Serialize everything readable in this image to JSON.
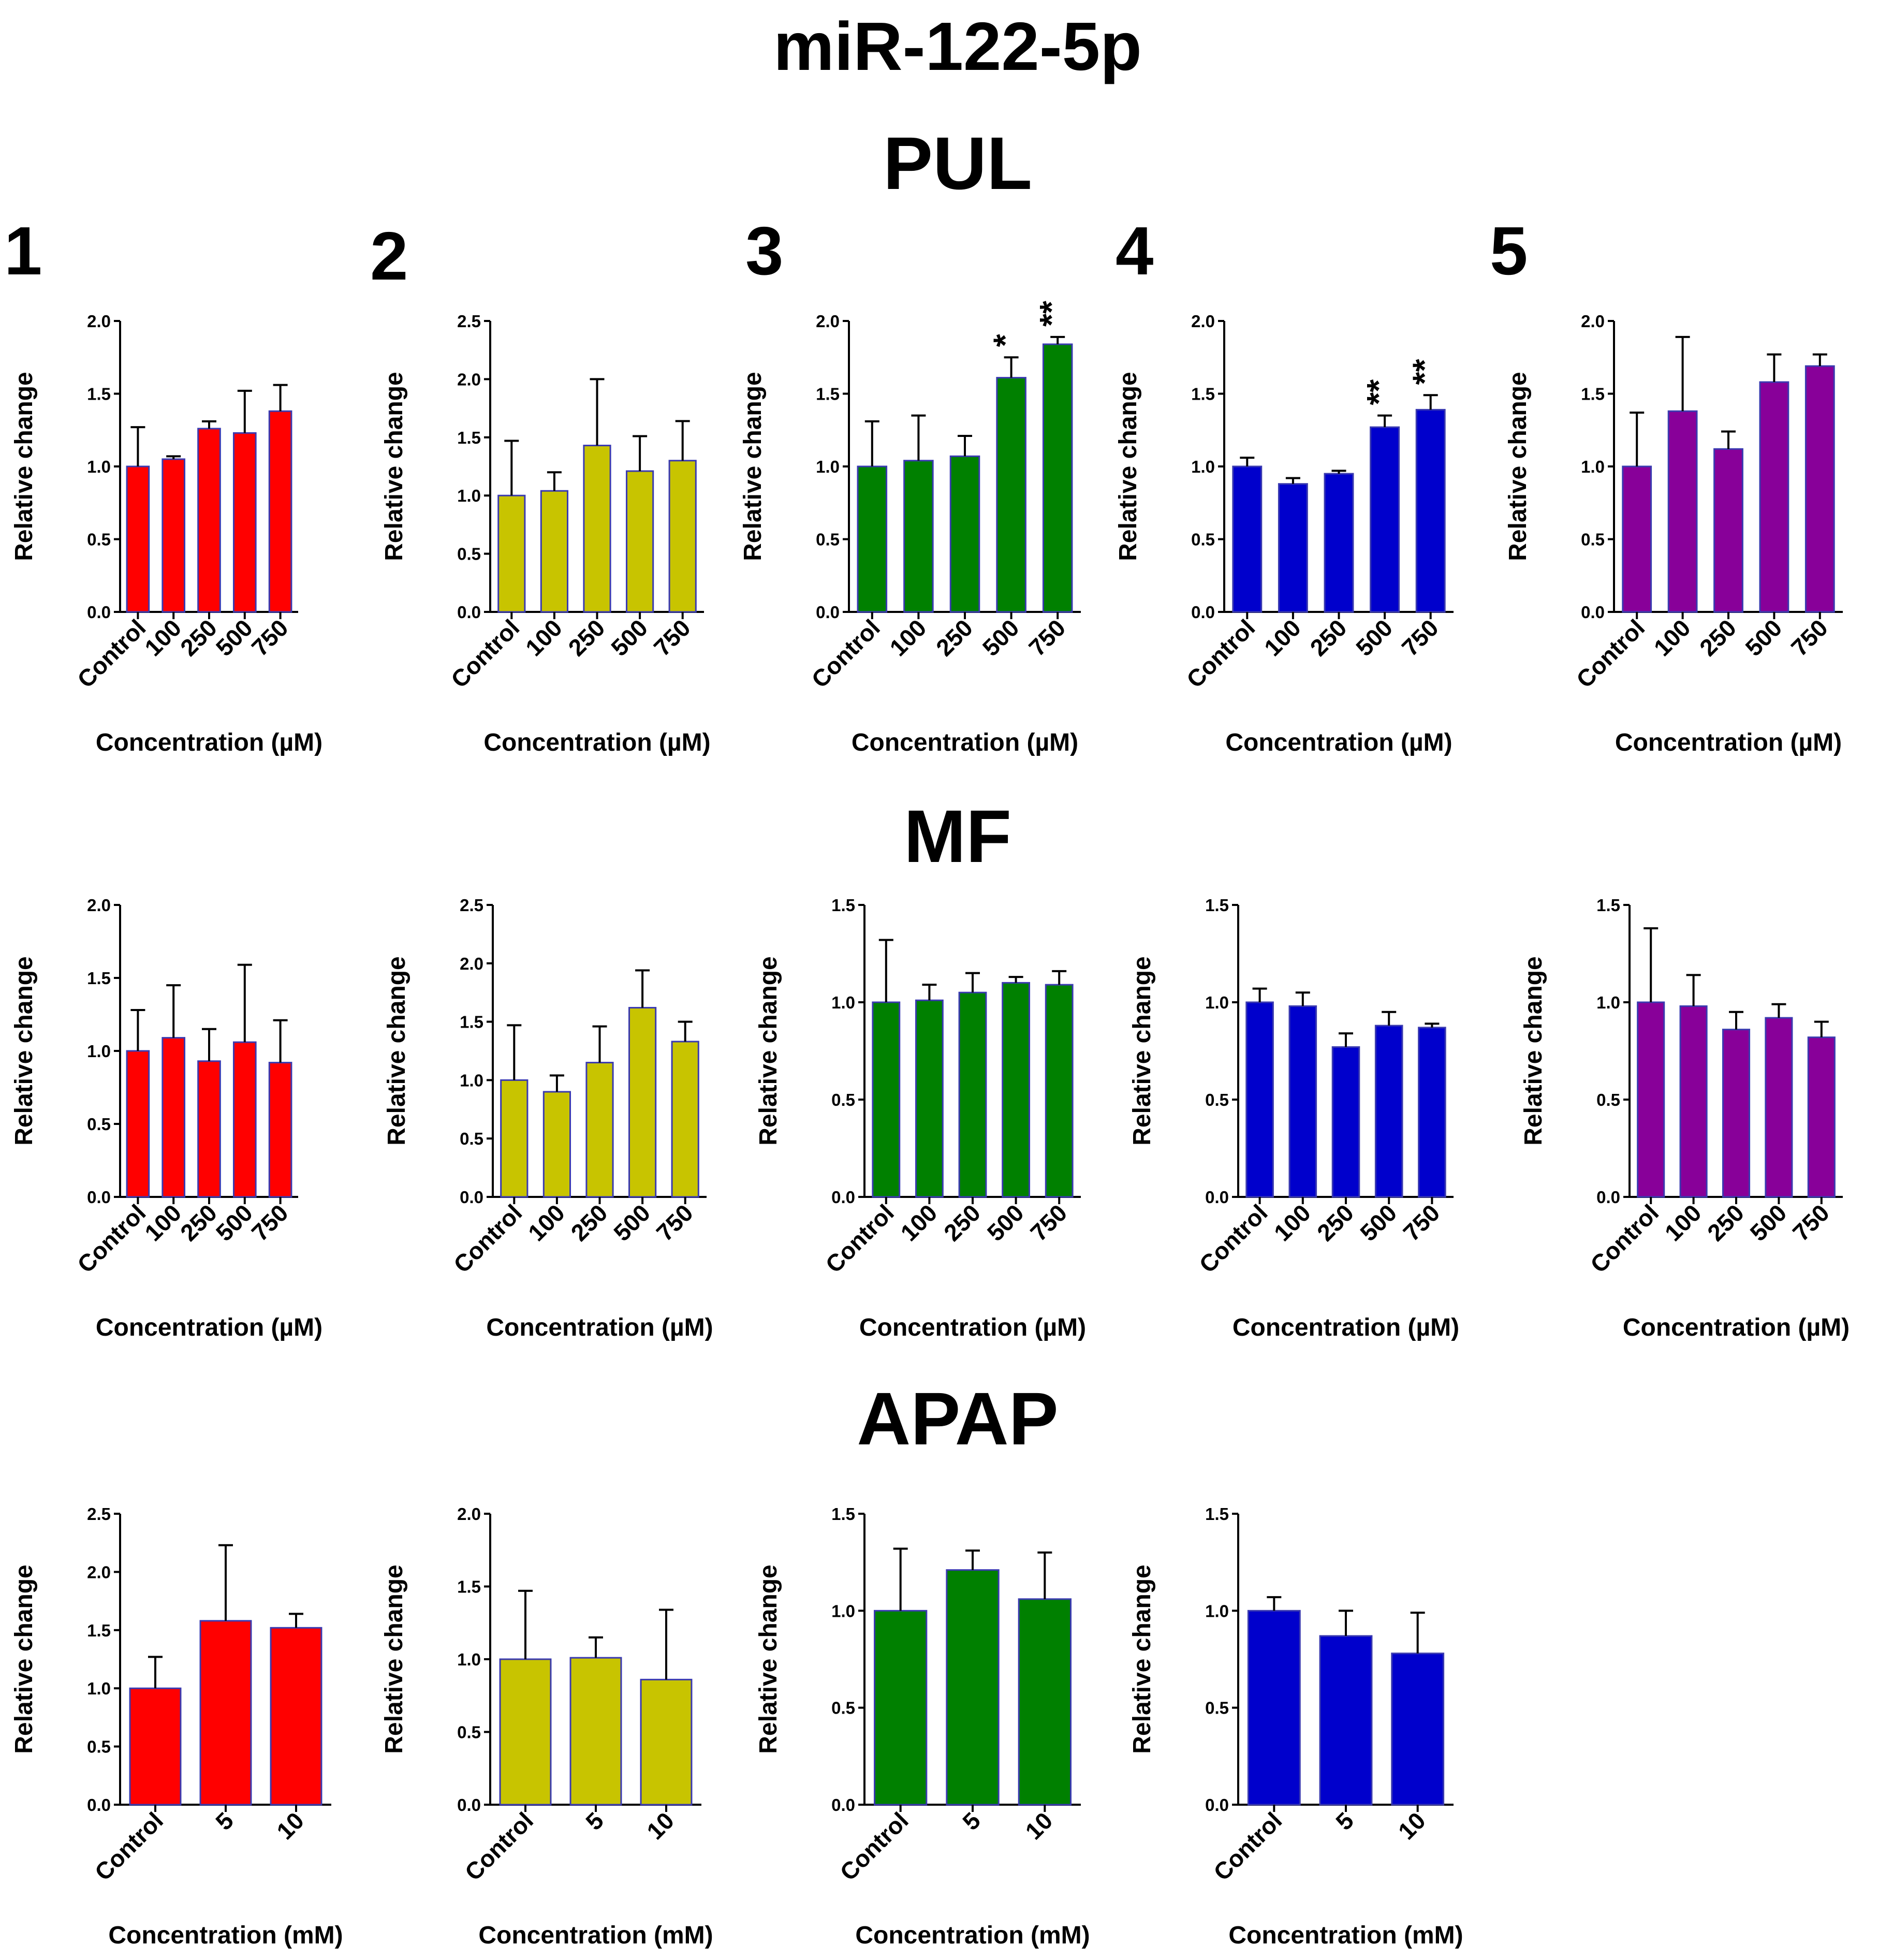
{
  "figure": {
    "title": "miR-122-5p",
    "sections": [
      "PUL",
      "MF",
      "APAP"
    ],
    "panel_numbers": [
      "1",
      "2",
      "3",
      "4",
      "5"
    ]
  },
  "colors": {
    "red": "#ff0000",
    "olive": "#c8c400",
    "green": "#008000",
    "blue": "#0000cc",
    "purple": "#880099",
    "bar_outline": "#3a3ab0",
    "axis": "#000000"
  },
  "chart_data": [
    {
      "type": "bar",
      "section": "PUL",
      "panel": "1",
      "color": "red",
      "categories": [
        "Control",
        "100",
        "250",
        "500",
        "750"
      ],
      "values": [
        1.0,
        1.05,
        1.26,
        1.23,
        1.38
      ],
      "errors": [
        0.27,
        0.02,
        0.05,
        0.29,
        0.18
      ],
      "significance": [
        "",
        "",
        "",
        "",
        ""
      ],
      "ylim": [
        0,
        2.0
      ],
      "yticks": [
        "0.0",
        "0.5",
        "1.0",
        "1.5",
        "2.0"
      ],
      "ylabel": "Relative change",
      "xlabel": "Concentration (µM)"
    },
    {
      "type": "bar",
      "section": "PUL",
      "panel": "2",
      "color": "olive",
      "categories": [
        "Control",
        "100",
        "250",
        "500",
        "750"
      ],
      "values": [
        1.0,
        1.04,
        1.43,
        1.21,
        1.3
      ],
      "errors": [
        0.47,
        0.16,
        0.57,
        0.3,
        0.34
      ],
      "significance": [
        "",
        "",
        "",
        "",
        ""
      ],
      "ylim": [
        0,
        2.5
      ],
      "yticks": [
        "0.0",
        "0.5",
        "1.0",
        "1.5",
        "2.0",
        "2.5"
      ],
      "ylabel": "Relative change",
      "xlabel": "Concentration (µM)"
    },
    {
      "type": "bar",
      "section": "PUL",
      "panel": "3",
      "color": "green",
      "categories": [
        "Control",
        "100",
        "250",
        "500",
        "750"
      ],
      "values": [
        1.0,
        1.04,
        1.07,
        1.61,
        1.84
      ],
      "errors": [
        0.31,
        0.31,
        0.14,
        0.14,
        0.05
      ],
      "significance": [
        "",
        "",
        "",
        "*",
        "**"
      ],
      "ylim": [
        0,
        2.0
      ],
      "yticks": [
        "0.0",
        "0.5",
        "1.0",
        "1.5",
        "2.0"
      ],
      "ylabel": "Relative change",
      "xlabel": "Concentration (µM)"
    },
    {
      "type": "bar",
      "section": "PUL",
      "panel": "4",
      "color": "blue",
      "categories": [
        "Control",
        "100",
        "250",
        "500",
        "750"
      ],
      "values": [
        1.0,
        0.88,
        0.95,
        1.27,
        1.39
      ],
      "errors": [
        0.06,
        0.04,
        0.02,
        0.08,
        0.1
      ],
      "significance": [
        "",
        "",
        "",
        "**",
        "**"
      ],
      "ylim": [
        0,
        2.0
      ],
      "yticks": [
        "0.0",
        "0.5",
        "1.0",
        "1.5",
        "2.0"
      ],
      "ylabel": "Relative change",
      "xlabel": "Concentration (µM)"
    },
    {
      "type": "bar",
      "section": "PUL",
      "panel": "5",
      "color": "purple",
      "categories": [
        "Control",
        "100",
        "250",
        "500",
        "750"
      ],
      "values": [
        1.0,
        1.38,
        1.12,
        1.58,
        1.69
      ],
      "errors": [
        0.37,
        0.51,
        0.12,
        0.19,
        0.08
      ],
      "significance": [
        "",
        "",
        "",
        "",
        ""
      ],
      "ylim": [
        0,
        2.0
      ],
      "yticks": [
        "0.0",
        "0.5",
        "1.0",
        "1.5",
        "2.0"
      ],
      "ylabel": "Relative change",
      "xlabel": "Concentration (µM)"
    },
    {
      "type": "bar",
      "section": "MF",
      "panel": "",
      "color": "red",
      "categories": [
        "Control",
        "100",
        "250",
        "500",
        "750"
      ],
      "values": [
        1.0,
        1.09,
        0.93,
        1.06,
        0.92
      ],
      "errors": [
        0.28,
        0.36,
        0.22,
        0.53,
        0.29
      ],
      "significance": [
        "",
        "",
        "",
        "",
        ""
      ],
      "ylim": [
        0,
        2.0
      ],
      "yticks": [
        "0.0",
        "0.5",
        "1.0",
        "1.5",
        "2.0"
      ],
      "ylabel": "Relative change",
      "xlabel": "Concentration (µM)"
    },
    {
      "type": "bar",
      "section": "MF",
      "panel": "",
      "color": "olive",
      "categories": [
        "Control",
        "100",
        "250",
        "500",
        "750"
      ],
      "values": [
        1.0,
        0.9,
        1.15,
        1.62,
        1.33
      ],
      "errors": [
        0.47,
        0.14,
        0.31,
        0.32,
        0.17
      ],
      "significance": [
        "",
        "",
        "",
        "",
        ""
      ],
      "ylim": [
        0,
        2.5
      ],
      "yticks": [
        "0.0",
        "0.5",
        "1.0",
        "1.5",
        "2.0",
        "2.5"
      ],
      "ylabel": "Relative change",
      "xlabel": "Concentration (µM)"
    },
    {
      "type": "bar",
      "section": "MF",
      "panel": "",
      "color": "green",
      "categories": [
        "Control",
        "100",
        "250",
        "500",
        "750"
      ],
      "values": [
        1.0,
        1.01,
        1.05,
        1.1,
        1.09
      ],
      "errors": [
        0.32,
        0.08,
        0.1,
        0.03,
        0.07
      ],
      "significance": [
        "",
        "",
        "",
        "",
        ""
      ],
      "ylim": [
        0,
        1.5
      ],
      "yticks": [
        "0.0",
        "0.5",
        "1.0",
        "1.5"
      ],
      "ylabel": "Relative change",
      "xlabel": "Concentration (µM)"
    },
    {
      "type": "bar",
      "section": "MF",
      "panel": "",
      "color": "blue",
      "categories": [
        "Control",
        "100",
        "250",
        "500",
        "750"
      ],
      "values": [
        1.0,
        0.98,
        0.77,
        0.88,
        0.87
      ],
      "errors": [
        0.07,
        0.07,
        0.07,
        0.07,
        0.02
      ],
      "significance": [
        "",
        "",
        "",
        "",
        ""
      ],
      "ylim": [
        0,
        1.5
      ],
      "yticks": [
        "0.0",
        "0.5",
        "1.0",
        "1.5"
      ],
      "ylabel": "Relative change",
      "xlabel": "Concentration (µM)"
    },
    {
      "type": "bar",
      "section": "MF",
      "panel": "",
      "color": "purple",
      "categories": [
        "Control",
        "100",
        "250",
        "500",
        "750"
      ],
      "values": [
        1.0,
        0.98,
        0.86,
        0.92,
        0.82
      ],
      "errors": [
        0.38,
        0.16,
        0.09,
        0.07,
        0.08
      ],
      "significance": [
        "",
        "",
        "",
        "",
        ""
      ],
      "ylim": [
        0,
        1.5
      ],
      "yticks": [
        "0.0",
        "0.5",
        "1.0",
        "1.5"
      ],
      "ylabel": "Relative change",
      "xlabel": "Concentration (µM)"
    },
    {
      "type": "bar",
      "section": "APAP",
      "panel": "",
      "color": "red",
      "categories": [
        "Control",
        "5",
        "10"
      ],
      "values": [
        1.0,
        1.58,
        1.52
      ],
      "errors": [
        0.27,
        0.65,
        0.12
      ],
      "significance": [
        "",
        "",
        ""
      ],
      "ylim": [
        0,
        2.5
      ],
      "yticks": [
        "0.0",
        "0.5",
        "1.0",
        "1.5",
        "2.0",
        "2.5"
      ],
      "ylabel": "Relative change",
      "xlabel": "Concentration (mM)"
    },
    {
      "type": "bar",
      "section": "APAP",
      "panel": "",
      "color": "olive",
      "categories": [
        "Control",
        "5",
        "10"
      ],
      "values": [
        1.0,
        1.01,
        0.86
      ],
      "errors": [
        0.47,
        0.14,
        0.48
      ],
      "significance": [
        "",
        "",
        ""
      ],
      "ylim": [
        0,
        2.0
      ],
      "yticks": [
        "0.0",
        "0.5",
        "1.0",
        "1.5",
        "2.0"
      ],
      "ylabel": "Relative change",
      "xlabel": "Concentration (mM)"
    },
    {
      "type": "bar",
      "section": "APAP",
      "panel": "",
      "color": "green",
      "categories": [
        "Control",
        "5",
        "10"
      ],
      "values": [
        1.0,
        1.21,
        1.06
      ],
      "errors": [
        0.32,
        0.1,
        0.24
      ],
      "significance": [
        "",
        "",
        ""
      ],
      "ylim": [
        0,
        1.5
      ],
      "yticks": [
        "0.0",
        "0.5",
        "1.0",
        "1.5"
      ],
      "ylabel": "Relative change",
      "xlabel": "Concentration (mM)"
    },
    {
      "type": "bar",
      "section": "APAP",
      "panel": "",
      "color": "blue",
      "categories": [
        "Control",
        "5",
        "10"
      ],
      "values": [
        1.0,
        0.87,
        0.78
      ],
      "errors": [
        0.07,
        0.13,
        0.21
      ],
      "significance": [
        "",
        "",
        ""
      ],
      "ylim": [
        0,
        1.5
      ],
      "yticks": [
        "0.0",
        "0.5",
        "1.0",
        "1.5"
      ],
      "ylabel": "Relative change",
      "xlabel": "Concentration (mM)"
    }
  ]
}
